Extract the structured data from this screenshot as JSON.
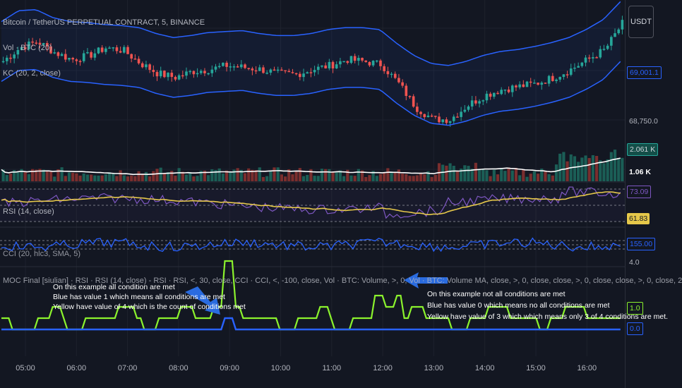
{
  "header": {
    "symbol_title": "Bitcoin / TetherUS PERPETUAL CONTRACT, 5, BINANCE",
    "currency_button": "USDT"
  },
  "indicators": {
    "volume_label": "Vol · BTC (20)",
    "kc_label": "KC (20, 2, close)",
    "rsi_label": "RSI (14, close)",
    "cci_label": "CCI (20, hlc3, SMA, 5)",
    "moc_label": "MOC Final [siulian] · RSI · RSI (14, close) - RSI · RSI, <, 30, close, CCI · CCI, <, -100, close, Vol · BTC: Volume, >, 0, Vol · BTC: Volume MA, close, >, 0, close, close, >, 0, close, close, >, 0, close, 2"
  },
  "price_axis": {
    "kc_price": "69,001.1",
    "price_tick": "68,750.0",
    "vol_value": "2.061 K",
    "vol_ma_value": "1.06 K",
    "rsi_value": "73.09",
    "rsi_ma_value": "61.83",
    "cci_value": "155.00",
    "moc_tick": "4.0",
    "moc_yellow": "1.0",
    "moc_blue": "0.0"
  },
  "annotations": {
    "left": [
      "On this example all condition are met",
      "Blue has value 1 which means all conditions are met",
      "Yellow have value of 4 which is the count of conditions met"
    ],
    "right": [
      "On this example not all conditions are met",
      "Blue has value 0 which means no all conditions are met",
      "Yellow have value of 3 which which means only 3 of 4 conditions are met."
    ]
  },
  "time_axis": [
    "05:00",
    "06:00",
    "07:00",
    "08:00",
    "09:00",
    "10:00",
    "11:00",
    "12:00",
    "13:00",
    "14:00",
    "15:00",
    "16:00"
  ],
  "colors": {
    "background": "#131722",
    "up": "#26a69a",
    "down": "#ef5350",
    "kc_band": "#2962ff",
    "volume_ma": "#ffffff",
    "rsi_line": "#7e57c2",
    "rsi_ma": "#e6c84a",
    "cci_line": "#2962ff",
    "moc_yellow": "#8bf22d",
    "moc_blue": "#2962ff",
    "arrow": "#2a6bdf"
  },
  "chart_data": [
    {
      "type": "candlestick",
      "title": "Bitcoin / TetherUS PERPETUAL CONTRACT, 5, BINANCE",
      "y_tick_labels": [
        "68,750.0",
        "69,001.1"
      ],
      "close_trend": [
        69052,
        69120,
        69150,
        69095,
        69060,
        69080,
        69120,
        69105,
        69040,
        68990,
        68970,
        69000,
        69010,
        69030,
        69020,
        69010,
        68990,
        68985,
        69010,
        69030,
        69060,
        69050,
        69035,
        68940,
        68820,
        68760,
        68760,
        68830,
        68880,
        68910,
        68925,
        68940,
        68970,
        69010,
        69060,
        69110,
        69240
      ],
      "series": [
        {
          "name": "KC (20, 2, close)",
          "values": [
            69100,
            69155,
            69160,
            69120,
            69100,
            69095,
            69085,
            69080,
            69070,
            69040,
            69020,
            69030,
            69045,
            69050,
            69055,
            69040,
            69030,
            69030,
            69040,
            69060,
            69070,
            69070,
            69060,
            68990,
            68930,
            68890,
            68880,
            68900,
            68930,
            68950,
            68960,
            68975,
            68995,
            69020,
            69060,
            69110,
            69200
          ]
        }
      ]
    },
    {
      "type": "bar",
      "title": "Vol · BTC (20)",
      "last_values": [
        "2.061 K",
        "1.06 K"
      ]
    },
    {
      "type": "line",
      "title": "RSI (14, close)",
      "series": [
        {
          "name": "RSI",
          "last": 73.09
        },
        {
          "name": "RSI MA",
          "last": 61.83
        }
      ]
    },
    {
      "type": "line",
      "title": "CCI (20, hlc3, SMA, 5)",
      "series": [
        {
          "name": "CCI",
          "last": 155.0
        }
      ]
    },
    {
      "type": "line",
      "title": "MOC Final",
      "y_tick_labels": [
        "4.0",
        "1.0",
        "0.0"
      ],
      "series": [
        {
          "name": "Yellow",
          "last": 1.0
        },
        {
          "name": "Blue",
          "last": 0.0
        }
      ]
    }
  ]
}
